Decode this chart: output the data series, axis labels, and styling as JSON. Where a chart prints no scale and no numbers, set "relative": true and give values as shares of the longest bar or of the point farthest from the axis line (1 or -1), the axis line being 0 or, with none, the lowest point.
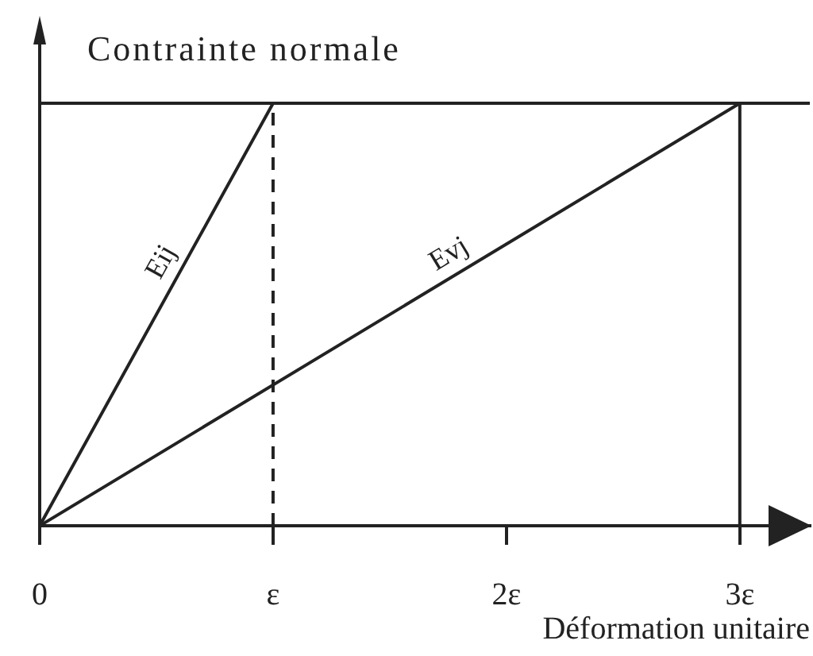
{
  "chart_data": {
    "type": "line",
    "relative": true,
    "ylabel": "Contrainte normale",
    "xlabel": "Déformation unitaire",
    "xlim": [
      0,
      3.3
    ],
    "xticks": [
      0,
      {
        "value": 1,
        "label": "ε"
      },
      {
        "value": 2,
        "label": "2ε"
      },
      {
        "value": 3,
        "label": "3ε"
      }
    ],
    "tick_labels": "x",
    "series": [
      {
        "name": "Eij",
        "color": "#222222",
        "x": [
          0,
          1
        ],
        "values": [
          0,
          1
        ]
      },
      {
        "name": "Evj",
        "color": "#222222",
        "x": [
          0,
          3
        ],
        "values": [
          0,
          1
        ]
      }
    ],
    "ref_lines": [
      {
        "axis": "y",
        "value": 1,
        "color": "#222222"
      },
      {
        "axis": "x",
        "value": 1,
        "color": "#222222",
        "line_style": "dashed"
      },
      {
        "axis": "x",
        "value": 3,
        "color": "#222222"
      }
    ]
  }
}
